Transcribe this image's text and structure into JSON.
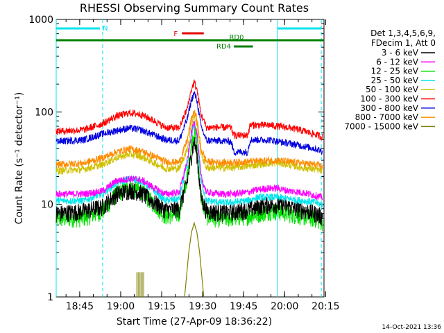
{
  "chart_data": {
    "type": "line",
    "title": "RHESSI Observing Summary Count Rates",
    "xlabel": "Start Time (27-Apr-09 18:36:22)",
    "ylabel": "Count Rate (s⁻¹ detector⁻¹)",
    "y_scale": "log",
    "ylim": [
      1,
      1000
    ],
    "xlim_minutes": [
      0,
      98
    ],
    "x_ticks": [
      {
        "label": "18:45",
        "t": 8.6
      },
      {
        "label": "19:00",
        "t": 23.6
      },
      {
        "label": "19:15",
        "t": 38.6
      },
      {
        "label": "19:30",
        "t": 53.6
      },
      {
        "label": "19:45",
        "t": 68.6
      },
      {
        "label": "20:00",
        "t": 83.6
      },
      {
        "label": "20:15",
        "t": 98.6
      }
    ],
    "y_ticks": [
      {
        "label": "1",
        "v": 1
      },
      {
        "label": "10",
        "v": 10
      },
      {
        "label": "100",
        "v": 100
      },
      {
        "label": "1000",
        "v": 1000
      }
    ],
    "legend_header": [
      "Det 1,3,4,5,6,9,",
      "FDecim 1, Att 0"
    ],
    "timestamp": "14-Oct-2021 13:36",
    "night_lines": [
      {
        "t": 0,
        "style": "solid"
      },
      {
        "t": 17,
        "style": "dashed"
      },
      {
        "t": 81,
        "style": "solid"
      },
      {
        "t": 97,
        "style": "dashed"
      }
    ],
    "flags": [
      {
        "label": "N",
        "t0": 0,
        "t1": 16,
        "level": "top",
        "color": "#00e5ee"
      },
      {
        "label": "",
        "t0": 81,
        "t1": 97,
        "level": "top",
        "color": "#00e5ee"
      },
      {
        "label": "F",
        "t0": 46,
        "t1": 54,
        "level": "flare",
        "color": "#e00000"
      },
      {
        "label": "RD0",
        "t0": 0,
        "t1": 98,
        "level": "rd0",
        "color": "#008000"
      },
      {
        "label": "RD4",
        "t0": 65,
        "t1": 72,
        "level": "rd4",
        "color": "#008000"
      }
    ],
    "series": [
      {
        "name": "3 - 6 keV",
        "color": "#000000",
        "points": [
          [
            0,
            8
          ],
          [
            10,
            8.5
          ],
          [
            17,
            9.5
          ],
          [
            22,
            13
          ],
          [
            27,
            14.5
          ],
          [
            31,
            13.5
          ],
          [
            36,
            10.5
          ],
          [
            40,
            8.8
          ],
          [
            45,
            9
          ],
          [
            48,
            18
          ],
          [
            49.5,
            35
          ],
          [
            50.5,
            48
          ],
          [
            51.5,
            35
          ],
          [
            53,
            12
          ],
          [
            55,
            8.5
          ],
          [
            60,
            8.2
          ],
          [
            64,
            8.3
          ],
          [
            70,
            8.8
          ],
          [
            74,
            9.5
          ],
          [
            78,
            10
          ],
          [
            81,
            10
          ],
          [
            85,
            9.5
          ],
          [
            90,
            8.8
          ],
          [
            95,
            8
          ],
          [
            97,
            7.5
          ]
        ]
      },
      {
        "name": "6 - 12 keV",
        "color": "#ff00ff",
        "points": [
          [
            0,
            13
          ],
          [
            10,
            13
          ],
          [
            17,
            14
          ],
          [
            22,
            18
          ],
          [
            27,
            19
          ],
          [
            31,
            18.5
          ],
          [
            36,
            15
          ],
          [
            40,
            13
          ],
          [
            45,
            13.5
          ],
          [
            48,
            30
          ],
          [
            49.5,
            60
          ],
          [
            50.5,
            80
          ],
          [
            51.5,
            60
          ],
          [
            53,
            20
          ],
          [
            55,
            13.5
          ],
          [
            60,
            13
          ],
          [
            64,
            13
          ],
          [
            70,
            13.5
          ],
          [
            74,
            14.5
          ],
          [
            78,
            15
          ],
          [
            81,
            15
          ],
          [
            85,
            14
          ],
          [
            90,
            13.5
          ],
          [
            95,
            12.5
          ],
          [
            97,
            12
          ]
        ]
      },
      {
        "name": "12 - 25 keV",
        "color": "#00e000",
        "points": [
          [
            0,
            7
          ],
          [
            10,
            7.2
          ],
          [
            17,
            8.5
          ],
          [
            22,
            13
          ],
          [
            27,
            15.5
          ],
          [
            31,
            14
          ],
          [
            36,
            10
          ],
          [
            40,
            7.5
          ],
          [
            45,
            8
          ],
          [
            48,
            20
          ],
          [
            49.5,
            45
          ],
          [
            50.5,
            62
          ],
          [
            51.5,
            45
          ],
          [
            53,
            12
          ],
          [
            55,
            7.5
          ],
          [
            60,
            7
          ],
          [
            64,
            7.2
          ],
          [
            70,
            7.5
          ],
          [
            74,
            8
          ],
          [
            78,
            8.5
          ],
          [
            81,
            8.5
          ],
          [
            85,
            8
          ],
          [
            90,
            7.5
          ],
          [
            95,
            7
          ],
          [
            97,
            6.5
          ]
        ]
      },
      {
        "name": "25 - 50 keV",
        "color": "#00e5ee",
        "points": [
          [
            0,
            11
          ],
          [
            10,
            11
          ],
          [
            17,
            13
          ],
          [
            22,
            17
          ],
          [
            27,
            19
          ],
          [
            31,
            18
          ],
          [
            36,
            14
          ],
          [
            40,
            11
          ],
          [
            45,
            11.5
          ],
          [
            48,
            28
          ],
          [
            49.5,
            55
          ],
          [
            50.5,
            75
          ],
          [
            51.5,
            55
          ],
          [
            53,
            18
          ],
          [
            55,
            11
          ],
          [
            60,
            10.5
          ],
          [
            64,
            10.5
          ],
          [
            70,
            11
          ],
          [
            74,
            12
          ],
          [
            78,
            12
          ],
          [
            81,
            12
          ],
          [
            85,
            11.5
          ],
          [
            90,
            11
          ],
          [
            95,
            10.5
          ],
          [
            97,
            10
          ]
        ]
      },
      {
        "name": "50 - 100 keV",
        "color": "#d0c000",
        "points": [
          [
            0,
            23
          ],
          [
            10,
            24
          ],
          [
            17,
            27
          ],
          [
            22,
            32
          ],
          [
            27,
            35
          ],
          [
            31,
            33
          ],
          [
            36,
            28
          ],
          [
            40,
            24.5
          ],
          [
            45,
            24.5
          ],
          [
            48,
            40
          ],
          [
            49.5,
            75
          ],
          [
            50.5,
            90
          ],
          [
            51.5,
            75
          ],
          [
            53,
            35
          ],
          [
            55,
            25
          ],
          [
            60,
            25
          ],
          [
            64,
            25
          ],
          [
            70,
            26
          ],
          [
            74,
            27
          ],
          [
            78,
            28
          ],
          [
            81,
            28
          ],
          [
            85,
            27
          ],
          [
            90,
            25
          ],
          [
            95,
            24
          ],
          [
            97,
            23
          ]
        ]
      },
      {
        "name": "100 - 300 keV",
        "color": "#ff0000",
        "points": [
          [
            0,
            62
          ],
          [
            10,
            64
          ],
          [
            17,
            75
          ],
          [
            22,
            90
          ],
          [
            27,
            98
          ],
          [
            31,
            94
          ],
          [
            36,
            80
          ],
          [
            40,
            68
          ],
          [
            45,
            67
          ],
          [
            48,
            110
          ],
          [
            49.5,
            175
          ],
          [
            50.5,
            210
          ],
          [
            51.5,
            175
          ],
          [
            53,
            95
          ],
          [
            55,
            68
          ],
          [
            60,
            68
          ],
          [
            64,
            68
          ],
          [
            65,
            56
          ],
          [
            70,
            56
          ],
          [
            71,
            72
          ],
          [
            74,
            72
          ],
          [
            78,
            72
          ],
          [
            81,
            70
          ],
          [
            85,
            68
          ],
          [
            90,
            63
          ],
          [
            95,
            57
          ],
          [
            97,
            54
          ]
        ]
      },
      {
        "name": "300 - 800 keV",
        "color": "#0000e0",
        "points": [
          [
            0,
            48
          ],
          [
            10,
            50
          ],
          [
            17,
            58
          ],
          [
            22,
            63
          ],
          [
            27,
            67
          ],
          [
            31,
            64
          ],
          [
            36,
            56
          ],
          [
            40,
            50
          ],
          [
            45,
            49
          ],
          [
            48,
            85
          ],
          [
            49.5,
            135
          ],
          [
            50.5,
            160
          ],
          [
            51.5,
            135
          ],
          [
            53,
            70
          ],
          [
            55,
            49
          ],
          [
            60,
            49
          ],
          [
            64,
            48
          ],
          [
            65,
            37
          ],
          [
            70,
            37
          ],
          [
            71,
            50
          ],
          [
            74,
            50
          ],
          [
            78,
            50
          ],
          [
            81,
            48
          ],
          [
            85,
            46
          ],
          [
            90,
            43
          ],
          [
            95,
            40
          ],
          [
            97,
            38
          ]
        ]
      },
      {
        "name": "800 - 7000 keV",
        "color": "#ff8c00",
        "points": [
          [
            0,
            27
          ],
          [
            10,
            28
          ],
          [
            17,
            32
          ],
          [
            22,
            37
          ],
          [
            27,
            40
          ],
          [
            31,
            38
          ],
          [
            36,
            33
          ],
          [
            40,
            29
          ],
          [
            45,
            28.5
          ],
          [
            48,
            50
          ],
          [
            49.5,
            85
          ],
          [
            50.5,
            100
          ],
          [
            51.5,
            85
          ],
          [
            53,
            40
          ],
          [
            55,
            29
          ],
          [
            60,
            28.5
          ],
          [
            64,
            28.5
          ],
          [
            70,
            29
          ],
          [
            74,
            29.5
          ],
          [
            78,
            30
          ],
          [
            81,
            30
          ],
          [
            85,
            29
          ],
          [
            90,
            28
          ],
          [
            95,
            27
          ],
          [
            97,
            26
          ]
        ]
      },
      {
        "name": "7000 - 15000 keV",
        "color": "#808000",
        "points": [
          [
            47,
            1
          ],
          [
            48.5,
            3
          ],
          [
            49.5,
            5
          ],
          [
            50.5,
            6.3
          ],
          [
            51.5,
            5
          ],
          [
            52.5,
            3
          ],
          [
            54,
            1
          ]
        ]
      }
    ],
    "spikes_7000": [
      29.5,
      30,
      30.5,
      31,
      31.5,
      32
    ],
    "spike_value": 1.85
  }
}
